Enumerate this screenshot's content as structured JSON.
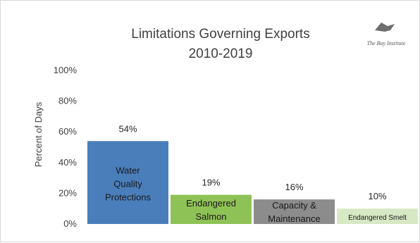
{
  "chart_data": {
    "type": "bar",
    "title": "Limitations Governing Exports",
    "subtitle": "2010-2019",
    "ylabel": "Percent of Days",
    "xlabel": "",
    "ylim": [
      0,
      100
    ],
    "yticks": [
      0,
      20,
      40,
      60,
      80,
      100
    ],
    "ytick_labels": [
      "0%",
      "20%",
      "40%",
      "60%",
      "80%",
      "100%"
    ],
    "grid": false,
    "legend": "none",
    "categories": [
      [
        "Water",
        "Quality",
        "Protections"
      ],
      [
        "Endangered",
        "Salmon"
      ],
      [
        "Capacity &",
        "Maintenance"
      ],
      [
        "Endangered Smelt"
      ]
    ],
    "values": [
      54,
      19,
      16,
      10
    ],
    "value_labels": [
      "54%",
      "19%",
      "16%",
      "10%"
    ],
    "colors": [
      "#4a7ebb",
      "#8fc256",
      "#8c8c8c",
      "#d7e8c4"
    ]
  },
  "logo": {
    "text": "The Bay Institute",
    "icon": "bird-icon"
  }
}
